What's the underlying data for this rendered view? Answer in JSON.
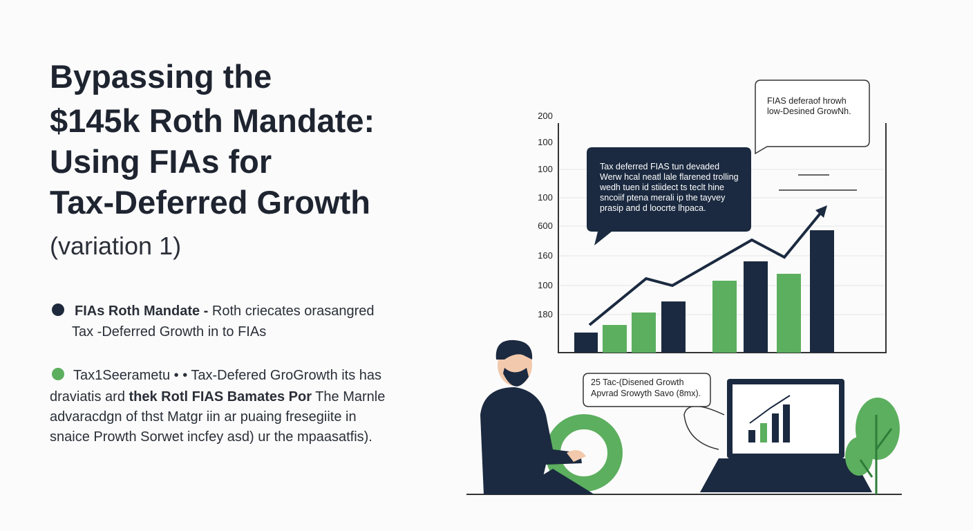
{
  "title": {
    "lines": [
      "Bypassing the",
      "$145k Roth Mandate:",
      "Using FIAs for",
      "Tax-Deferred Growth"
    ],
    "subtitle": "(variation 1)"
  },
  "bullets": [
    {
      "bold": "FIAs Roth Mandate -",
      "lines": [
        "Roth criecates orasangred",
        "Tax -Deferred Growth in to FIAs"
      ]
    },
    {
      "lines": [
        "Tax1Seerametu • • Tax-Defered GroGrowth its has",
        "draviatis ard "
      ],
      "bold": "thek Rotl FIAS Bamates Por",
      "after": " The Marnle",
      "more": [
        "advaracdgn of thst Matgr iin ar puaing fresegiite in",
        "snaice Prowth Sorwet incfey asd) ur the mpaasatfis)."
      ]
    }
  ],
  "axis_labels": [
    "200",
    "100",
    "100",
    "100",
    "600",
    "160",
    "100",
    "180"
  ],
  "callouts": {
    "dark": [
      "Tax deferred FIAS tun devaded",
      "Werw hcal neatl lale flarened trolling",
      "wedh tuen id stiidect ts teclt hine",
      "sncoiif ptena merali ip the tayvey",
      "prasip and d loocrte lhpaca."
    ],
    "top": [
      "FIAS deferaof hrowh",
      "low-Desined GrowNh."
    ],
    "bottom": [
      "25 Tac-(Disened Growth",
      "Apvrad Srowyth Savo (8mx)."
    ]
  }
}
